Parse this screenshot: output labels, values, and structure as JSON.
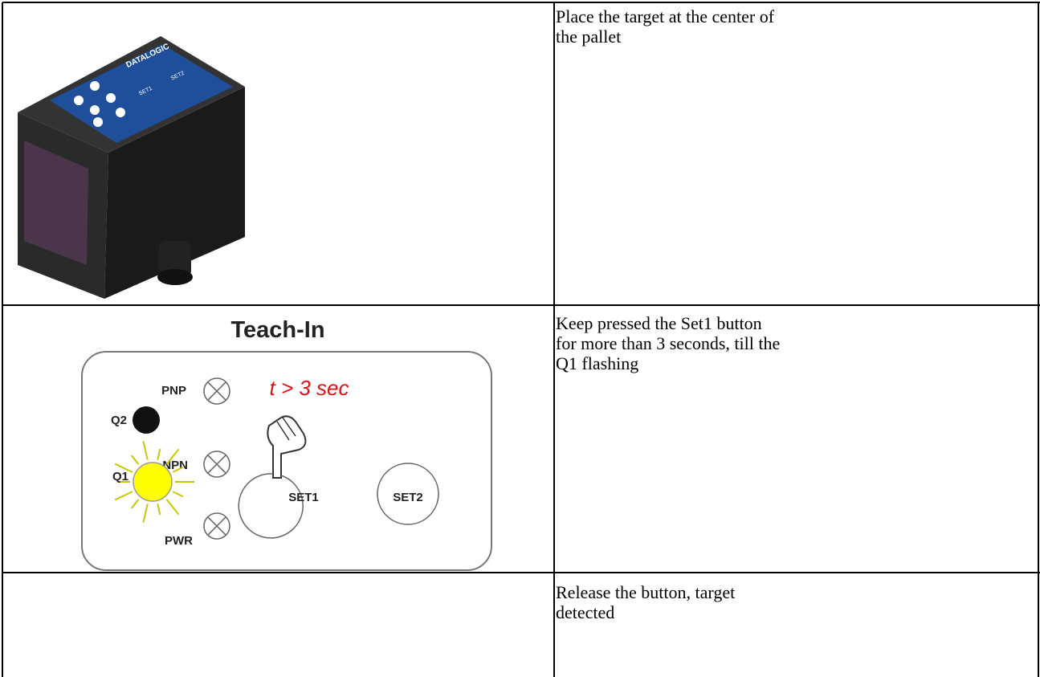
{
  "table": {
    "rows": [
      {
        "lines": [
          "Place the target at the center of",
          "the pallet"
        ]
      },
      {
        "lines": [
          "Keep pressed the Set1 button",
          "for more than 3 seconds, till the",
          "Q1 flashing"
        ]
      },
      {
        "lines": [
          "Release the button, target",
          "detected"
        ]
      }
    ]
  },
  "device_image": {
    "brand": "DATALOGIC",
    "buttons": [
      "SET1",
      "SET2"
    ]
  },
  "teach_in": {
    "title": "Teach-In",
    "timing": "t > 3 sec",
    "leds": [
      "PNP",
      "NPN",
      "PWR"
    ],
    "outputs": [
      "Q2",
      "Q1"
    ],
    "buttons": [
      "SET1",
      "SET2"
    ]
  }
}
